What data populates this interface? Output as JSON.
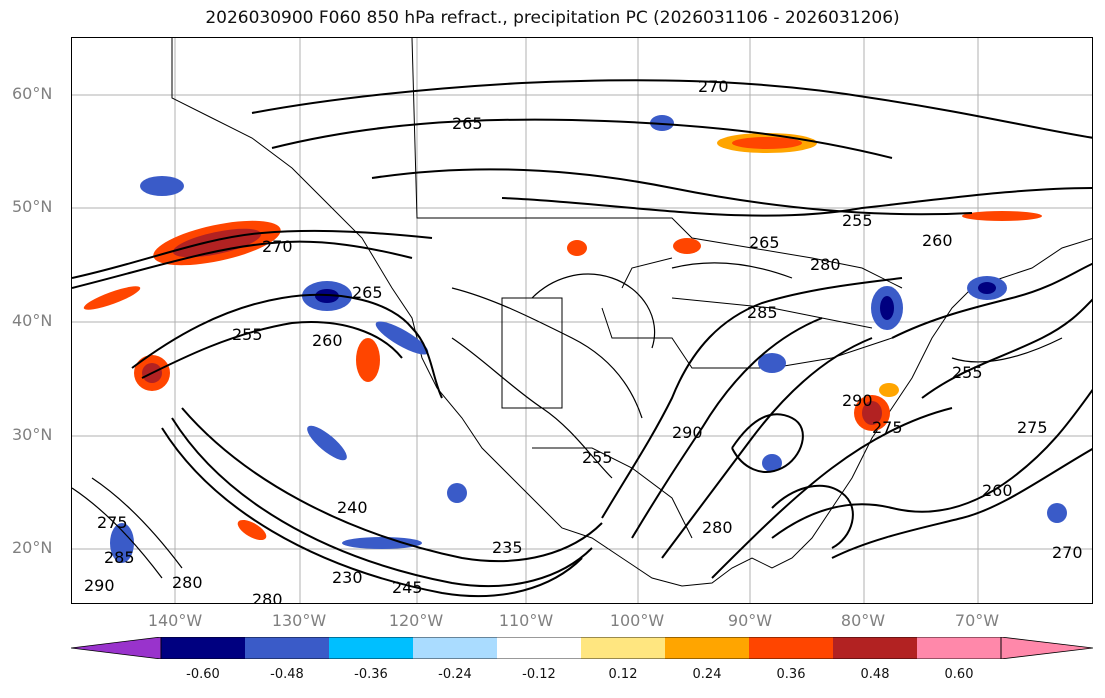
{
  "title": "2026030900 F060 850 hPa refract., precipitation PC (2026031106 - 2026031206)",
  "lat_labels": [
    "60°N",
    "50°N",
    "40°N",
    "30°N",
    "20°N"
  ],
  "lon_labels": [
    "140°W",
    "130°W",
    "120°W",
    "110°W",
    "100°W",
    "90°W",
    "80°W",
    "70°W"
  ],
  "contour_labels": [
    "270",
    "265",
    "255",
    "260",
    "265",
    "280",
    "285",
    "270",
    "290",
    "255",
    "260",
    "275",
    "280",
    "290",
    "275",
    "255",
    "240",
    "235",
    "230",
    "245",
    "280",
    "290",
    "285",
    "275",
    "280",
    "270",
    "255",
    "260",
    "265"
  ],
  "colorbar": {
    "ticks": [
      "-0.60",
      "-0.48",
      "-0.36",
      "-0.24",
      "-0.12",
      "0.12",
      "0.24",
      "0.36",
      "0.48",
      "0.60"
    ],
    "colors": [
      "#9933cc",
      "#000080",
      "#3a5bc8",
      "#00bfff",
      "#aadcff",
      "#ffffff",
      "#ffe680",
      "#ffa500",
      "#ff4500",
      "#b22222",
      "#ff88aa"
    ]
  }
}
